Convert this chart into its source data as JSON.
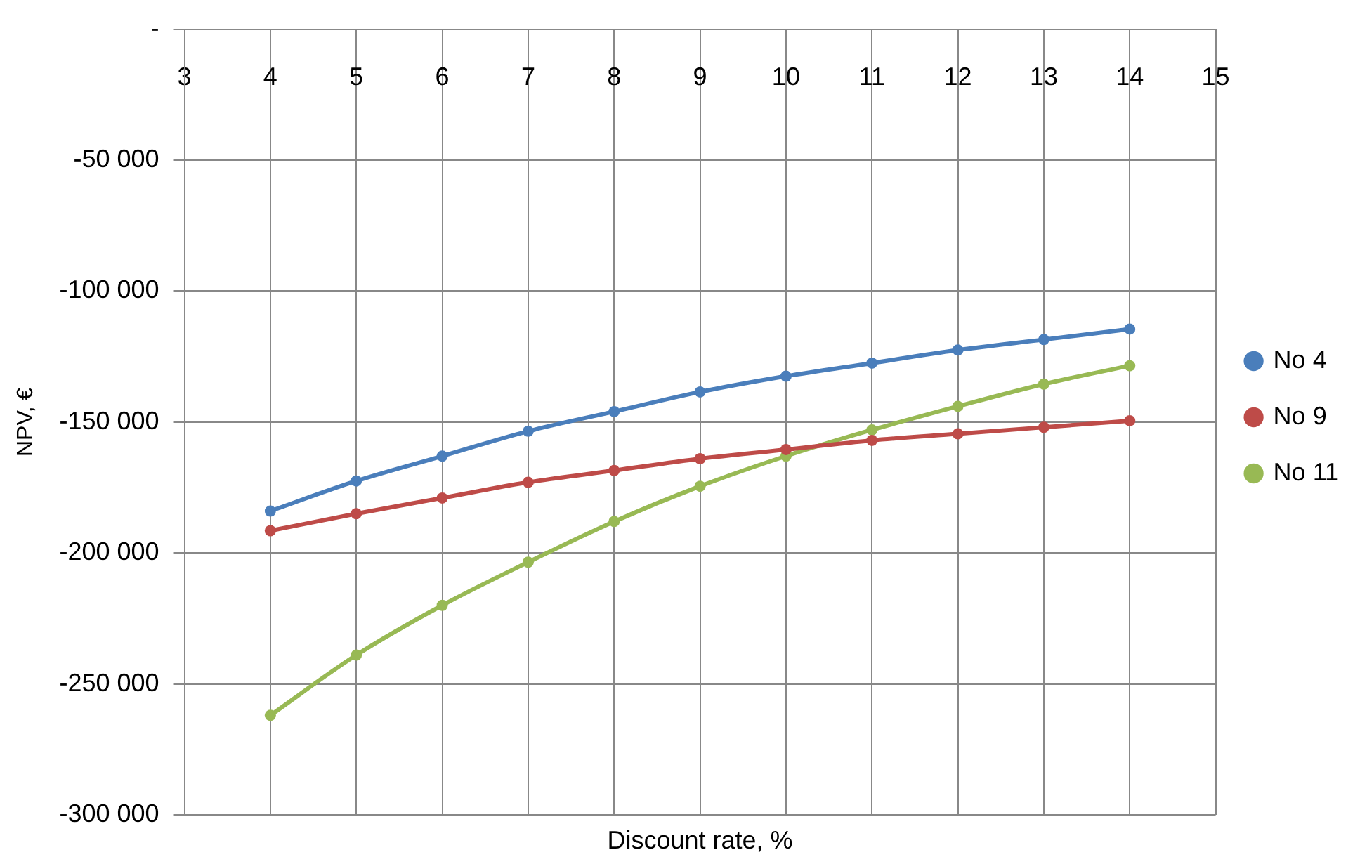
{
  "chart_data": {
    "type": "line",
    "xlabel": "Discount rate, %",
    "ylabel": "NPV, €",
    "x": [
      4,
      5,
      6,
      7,
      8,
      9,
      10,
      11,
      12,
      13,
      14
    ],
    "xlim": [
      3,
      15
    ],
    "xticks": [
      3,
      4,
      5,
      6,
      7,
      8,
      9,
      10,
      11,
      12,
      13,
      14,
      15
    ],
    "ylim": [
      -300000,
      0
    ],
    "yticks": [
      {
        "value": -300000,
        "label": "-300 000"
      },
      {
        "value": -250000,
        "label": "-250 000"
      },
      {
        "value": -200000,
        "label": "-200 000"
      },
      {
        "value": -150000,
        "label": "-150 000"
      },
      {
        "value": -100000,
        "label": "-100 000"
      },
      {
        "value": -50000,
        "label": "-50 000"
      },
      {
        "value": 0,
        "label": "-"
      }
    ],
    "grid": true,
    "legend": "right",
    "marker": "circle",
    "line_style": "solid",
    "series": [
      {
        "name": "No 4",
        "color": "#4a7ebb",
        "values": [
          -184000,
          -172500,
          -163000,
          -153500,
          -146000,
          -138500,
          -132500,
          -127500,
          -122500,
          -118500,
          -114500
        ]
      },
      {
        "name": "No 9",
        "color": "#be4b48",
        "values": [
          -191500,
          -185000,
          -179000,
          -173000,
          -168500,
          -164000,
          -160500,
          -157000,
          -154500,
          -152000,
          -149500
        ]
      },
      {
        "name": "No 11",
        "color": "#98b954",
        "values": [
          -262000,
          -239000,
          -220000,
          -203500,
          -188000,
          -174500,
          -163000,
          -153000,
          -144000,
          -135500,
          -128500
        ]
      }
    ]
  }
}
